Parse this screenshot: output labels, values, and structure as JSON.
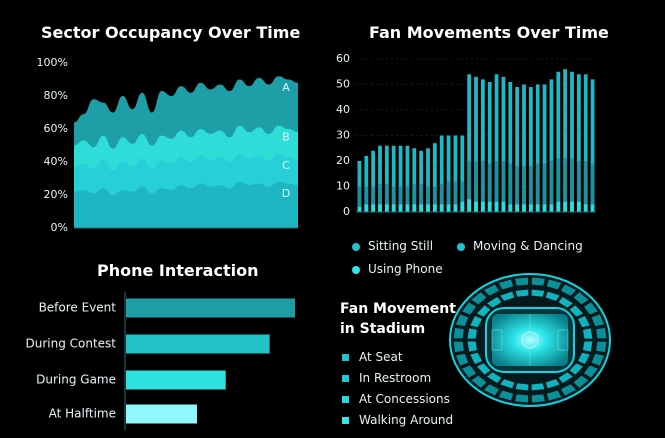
{
  "colors": {
    "bg": "#000000",
    "text": "#ffffff",
    "layer_d": "#1fb4c3",
    "layer_c": "#27cfd6",
    "layer_b": "#2fe0d9",
    "layer_a": "#20a6b0",
    "bar_sitting": "#1a8f9c",
    "bar_moving": "#1fc3cf",
    "bar_phone": "#2ee6e6",
    "phone_bar_1": "#1f9ea6",
    "phone_bar_2": "#22c2c8",
    "phone_bar_3": "#2ee0e0",
    "phone_bar_4": "#8ef8fb",
    "stadium": "#0fd3e0"
  },
  "chart_data": [
    {
      "type": "area",
      "title": "Sector Occupancy Over Time",
      "ylim": [
        0,
        100
      ],
      "yticks": [
        "0%",
        "20%",
        "40%",
        "60%",
        "80%",
        "100%"
      ],
      "series": [
        {
          "name": "D",
          "values": [
            22,
            23,
            21,
            24,
            20,
            23,
            22,
            25,
            21,
            24,
            23,
            26,
            24,
            27,
            25,
            26,
            24,
            28,
            26,
            27,
            25,
            28,
            27,
            26
          ]
        },
        {
          "name": "C",
          "values": [
            37,
            39,
            36,
            41,
            35,
            40,
            37,
            42,
            36,
            41,
            39,
            43,
            40,
            44,
            41,
            43,
            40,
            45,
            42,
            44,
            41,
            45,
            43,
            41
          ]
        },
        {
          "name": "B",
          "values": [
            50,
            53,
            49,
            56,
            48,
            55,
            51,
            57,
            50,
            56,
            54,
            59,
            55,
            60,
            57,
            59,
            55,
            62,
            58,
            61,
            57,
            62,
            60,
            58
          ]
        },
        {
          "name": "A",
          "values": [
            64,
            69,
            78,
            76,
            70,
            80,
            72,
            82,
            70,
            83,
            80,
            86,
            82,
            88,
            84,
            87,
            83,
            90,
            86,
            91,
            87,
            92,
            90,
            88
          ]
        }
      ]
    },
    {
      "type": "bar",
      "title": "Fan Movements Over Time",
      "ylim": [
        0,
        60
      ],
      "yticks": [
        "0",
        "10",
        "20",
        "30",
        "40",
        "50",
        "60"
      ],
      "series": [
        {
          "name": "Sitting Still",
          "values": [
            20,
            22,
            24,
            26,
            26,
            26,
            26,
            26,
            25,
            24,
            25,
            27,
            30,
            30,
            30,
            30,
            54,
            53,
            52,
            51,
            54,
            53,
            51,
            49,
            50,
            49,
            50,
            50,
            52,
            55,
            56,
            55,
            54,
            54,
            52
          ]
        },
        {
          "name": "Moving & Dancing",
          "values": [
            10,
            10,
            10,
            11,
            11,
            10,
            10,
            10,
            11,
            11,
            10,
            10,
            11,
            12,
            12,
            12,
            20,
            20,
            20,
            19,
            20,
            20,
            19,
            18,
            18,
            18,
            19,
            19,
            20,
            21,
            21,
            21,
            20,
            20,
            19
          ]
        },
        {
          "name": "Using Phone",
          "values": [
            2,
            3,
            3,
            3,
            3,
            3,
            3,
            3,
            3,
            3,
            3,
            3,
            3,
            3,
            3,
            4,
            5,
            4,
            4,
            4,
            4,
            4,
            3,
            3,
            3,
            3,
            3,
            3,
            3,
            4,
            4,
            4,
            4,
            3,
            3
          ]
        }
      ]
    },
    {
      "type": "bar",
      "orientation": "horizontal",
      "title": "Phone Interaction",
      "categories": [
        "Before Event",
        "During Contest",
        "During Game",
        "At Halftime"
      ],
      "values": [
        100,
        85,
        59,
        42
      ]
    }
  ],
  "stadium": {
    "title_line1": "Fan Movement",
    "title_line2": "in Stadium",
    "legend": [
      "At Seat",
      "In Restroom",
      "At Concessions",
      "Walking Around"
    ]
  }
}
